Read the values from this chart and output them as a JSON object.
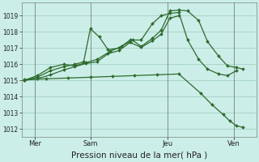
{
  "xlabel": "Pression niveau de la mer( hPa )",
  "bg_color": "#cceee8",
  "grid_color": "#99ccbb",
  "line_color": "#2d6a2d",
  "marker_color": "#2d6a2d",
  "ylim": [
    1011.5,
    1019.8
  ],
  "yticks": [
    1012,
    1013,
    1014,
    1015,
    1016,
    1017,
    1018,
    1019
  ],
  "day_labels": [
    "Mer",
    "Sam",
    "Jeu",
    "Ven"
  ],
  "day_positions": [
    0.5,
    3.0,
    6.5,
    9.5
  ],
  "xlim": [
    -0.1,
    10.5
  ],
  "series": [
    {
      "x": [
        0.0,
        0.6,
        1.2,
        1.8,
        2.3,
        2.8,
        3.3,
        3.9,
        4.4,
        4.9,
        5.3,
        5.8,
        6.2,
        6.6,
        7.0,
        7.4,
        7.9,
        8.3,
        8.8,
        9.2,
        9.6,
        9.9
      ],
      "y": [
        1015.0,
        1015.3,
        1015.8,
        1016.0,
        1015.9,
        1016.1,
        1016.3,
        1016.8,
        1017.1,
        1017.5,
        1017.1,
        1017.6,
        1018.1,
        1019.3,
        1019.35,
        1019.3,
        1018.7,
        1017.4,
        1016.5,
        1015.9,
        1015.8,
        1015.7
      ]
    },
    {
      "x": [
        0.0,
        0.6,
        1.2,
        1.8,
        2.3,
        2.7,
        3.0,
        3.4,
        3.8,
        4.3,
        4.8,
        5.3,
        5.8,
        6.2,
        6.6,
        7.0,
        7.4,
        7.9,
        8.3,
        8.8,
        9.2,
        9.6
      ],
      "y": [
        1015.0,
        1015.2,
        1015.6,
        1015.85,
        1016.0,
        1016.15,
        1018.2,
        1017.7,
        1016.9,
        1017.0,
        1017.5,
        1017.5,
        1018.5,
        1019.0,
        1019.15,
        1019.2,
        1017.5,
        1016.3,
        1015.7,
        1015.4,
        1015.3,
        1015.6
      ]
    },
    {
      "x": [
        0.0,
        0.6,
        1.2,
        1.8,
        2.3,
        2.8,
        3.3,
        3.8,
        4.3,
        4.8,
        5.3,
        5.8,
        6.2,
        6.6,
        7.0
      ],
      "y": [
        1015.0,
        1015.1,
        1015.35,
        1015.65,
        1015.85,
        1016.05,
        1016.15,
        1016.65,
        1016.85,
        1017.35,
        1017.05,
        1017.45,
        1017.85,
        1018.85,
        1019.0
      ]
    },
    {
      "x": [
        0.0,
        1.0,
        2.0,
        3.0,
        4.0,
        5.0,
        6.0,
        7.0,
        8.0,
        8.5,
        9.0,
        9.3,
        9.6,
        9.9
      ],
      "y": [
        1015.05,
        1015.1,
        1015.15,
        1015.2,
        1015.25,
        1015.3,
        1015.35,
        1015.4,
        1014.2,
        1013.5,
        1012.9,
        1012.5,
        1012.2,
        1012.1
      ]
    }
  ]
}
